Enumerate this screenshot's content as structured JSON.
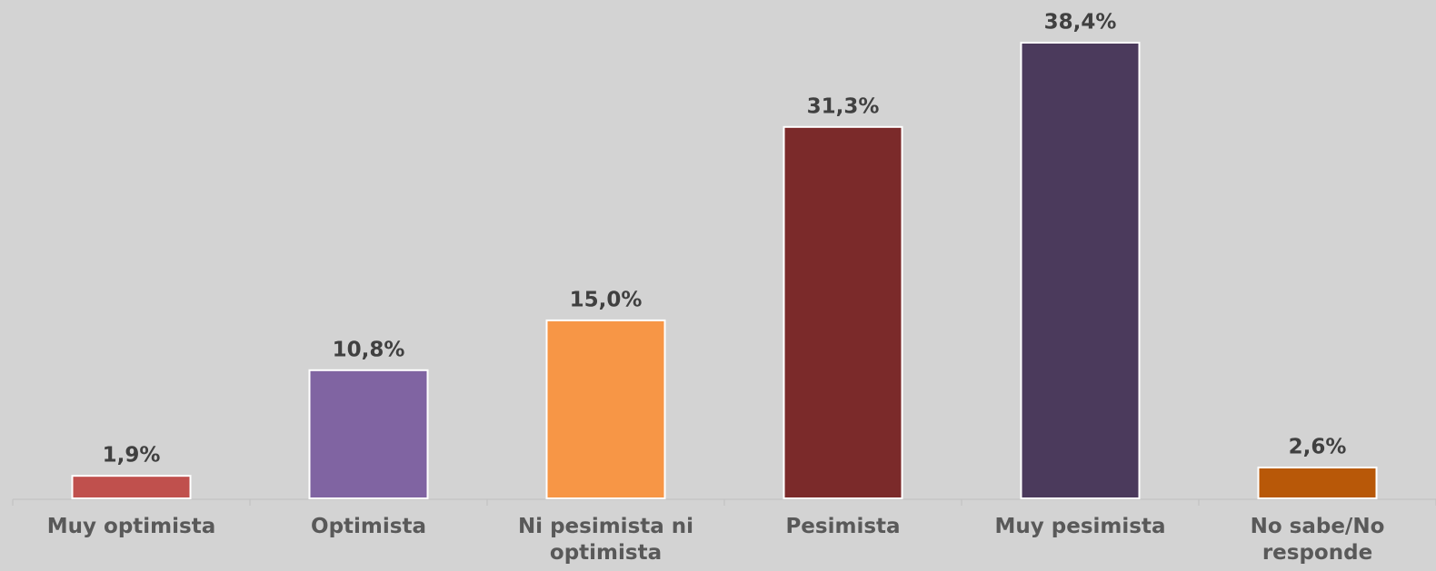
{
  "chart_data": {
    "type": "bar",
    "categories": [
      "Muy optimista",
      "Optimista",
      "Ni pesimista ni optimista",
      "Pesimista",
      "Muy pesimista",
      "No sabe/No responde"
    ],
    "values": [
      1.9,
      10.8,
      15.0,
      31.3,
      38.4,
      2.6
    ],
    "value_labels": [
      "1,9%",
      "10,8%",
      "15,0%",
      "31,3%",
      "38,4%",
      "2,6%"
    ],
    "colors": [
      "#c0504d",
      "#8064a2",
      "#f79646",
      "#7b2a2a",
      "#4b3a5c",
      "#b85808"
    ]
  }
}
